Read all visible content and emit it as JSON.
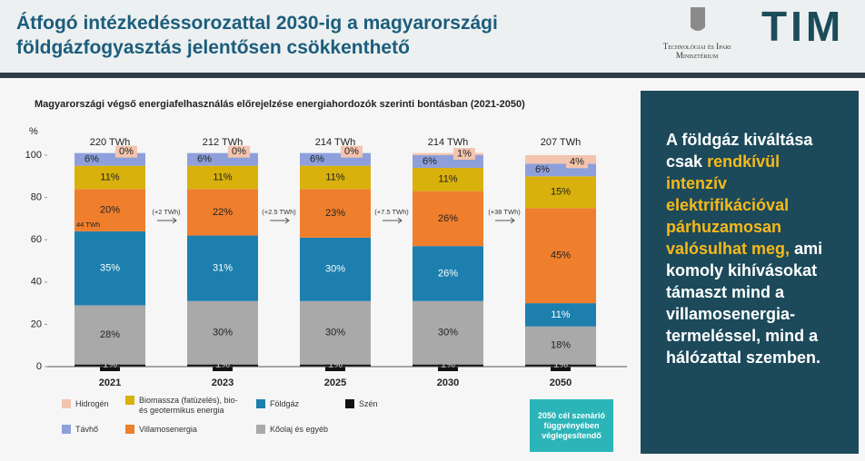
{
  "header": {
    "title_lines": [
      "Átfogó intézkedéssorozattal 2030-ig a magyarországi",
      "földgázfogyasztás jelentősen csökkenthető"
    ],
    "ministry": [
      "Technológiai és Ipari",
      "Minisztérium"
    ],
    "logo": "TIM"
  },
  "chart_data": {
    "type": "bar",
    "stacked": true,
    "title": "Magyarországi végső energiafelhasználás előrejelzése energiahordozók szerinti bontásban (2021-2050)",
    "y_label": "%",
    "categories": [
      "2021",
      "2023",
      "2025",
      "2030",
      "2050"
    ],
    "totals": [
      "220 TWh",
      "212 TWh",
      "214 TWh",
      "214 TWh",
      "207 TWh"
    ],
    "increments": [
      "(+2 TWh)",
      "(+2.5 TWh)",
      "(+7.5 TWh)",
      "(+38 TWh)"
    ],
    "note": "44 TWh",
    "ylim": [
      0,
      100
    ],
    "yticks": [
      0,
      20,
      40,
      60,
      80,
      100
    ],
    "grid": false,
    "series": [
      {
        "name": "Szén",
        "color": "#111111",
        "label_color": "#ffffff",
        "values": [
          1,
          1,
          1,
          1,
          1
        ],
        "value_labels": [
          "1%",
          "1%",
          "1%",
          "1%",
          "1%"
        ]
      },
      {
        "name": "Kőolaj és egyéb",
        "color": "#a9a9a9",
        "label_color": "#222222",
        "values": [
          28,
          30,
          30,
          30,
          18
        ],
        "value_labels": [
          "28%",
          "30%",
          "30%",
          "30%",
          "18%"
        ]
      },
      {
        "name": "Földgáz",
        "color": "#1d7fae",
        "label_color": "#ffffff",
        "values": [
          35,
          31,
          30,
          26,
          11
        ],
        "value_labels": [
          "35%",
          "31%",
          "30%",
          "26%",
          "11%"
        ]
      },
      {
        "name": "Villamosenergia",
        "color": "#ef7f2d",
        "label_color": "#222222",
        "values": [
          20,
          22,
          23,
          26,
          45
        ],
        "value_labels": [
          "20%",
          "22%",
          "23%",
          "26%",
          "45%"
        ]
      },
      {
        "name": "Biomassza (fatüzelés), bio- és geotermikus energia",
        "color": "#d8b10c",
        "label_color": "#222222",
        "values": [
          11,
          11,
          11,
          11,
          15
        ],
        "value_labels": [
          "11%",
          "11%",
          "11%",
          "11%",
          "15%"
        ]
      },
      {
        "name": "Távhő",
        "color": "#8ea0dc",
        "label_color": "#222222",
        "values": [
          6,
          6,
          6,
          6,
          6
        ],
        "value_labels": [
          "6%",
          "6%",
          "6%",
          "6%",
          "6%"
        ]
      },
      {
        "name": "Hidrogén",
        "color": "#f3c5ae",
        "label_color": "#222222",
        "values": [
          0,
          0,
          0,
          1,
          4
        ],
        "value_labels": [
          "0%",
          "0%",
          "0%",
          "1%",
          "4%"
        ]
      }
    ]
  },
  "badge": "2050 cél szenárió függvényében véglegesítendő",
  "panel": {
    "parts": [
      {
        "text": "A földgáz kiváltása csak",
        "highlight": false
      },
      {
        "text": "rendkívül intenzív elektrifikációval párhuzamosan valósulhat meg,",
        "highlight": true
      },
      {
        "text": "ami komoly kihívásokat támaszt mind a villamosenergia-termeléssel, mind a hálózattal szemben.",
        "highlight": false
      }
    ]
  }
}
